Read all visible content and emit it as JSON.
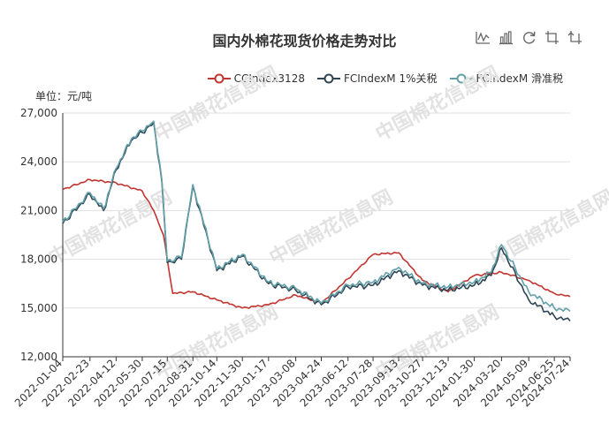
{
  "title": "国内外棉花现货价格走势对比",
  "unit_label": "单位：元/吨",
  "watermark": "中国棉花信息网",
  "watermark_url": "www.cottonchina.org",
  "toolbox": [
    "line-chart-icon",
    "bar-chart-icon",
    "restore-icon",
    "data-zoom-icon",
    "zoom-reset-icon"
  ],
  "chart_data": {
    "type": "line",
    "title": "国内外棉花现货价格走势对比",
    "ylabel": "单位：元/吨",
    "ylim": [
      12000,
      27000
    ],
    "yticks": [
      "12,000",
      "15,000",
      "18,000",
      "21,000",
      "24,000",
      "27,000"
    ],
    "ytick_values": [
      12000,
      15000,
      18000,
      21000,
      24000,
      27000
    ],
    "xticks": [
      "2022-01-04",
      "2022-02-23",
      "2022-04-12",
      "2022-05-30",
      "2022-07-15",
      "2022-08-31",
      "2022-10-14",
      "2022-11-30",
      "2023-01-17",
      "2023-03-08",
      "2023-04-24",
      "2023-06-12",
      "2023-07-28",
      "2023-09-13",
      "2023-10-27",
      "2023-12-13",
      "2024-01-30",
      "2024-03-20",
      "2024-05-09",
      "2024-06-25",
      "2024-07-24"
    ],
    "grid": true,
    "legend_position": "top-right",
    "series": [
      {
        "name": "CCIndex3128",
        "color": "#c23531",
        "x": [
          "2022-01-04",
          "2022-02-23",
          "2022-04-12",
          "2022-05-30",
          "2022-06-20",
          "2022-07-08",
          "2022-07-15",
          "2022-07-25",
          "2022-08-31",
          "2022-10-14",
          "2022-11-30",
          "2023-01-17",
          "2023-03-08",
          "2023-04-24",
          "2023-06-12",
          "2023-07-28",
          "2023-09-13",
          "2023-10-27",
          "2023-12-13",
          "2024-01-30",
          "2024-03-20",
          "2024-05-09",
          "2024-06-25",
          "2024-07-24"
        ],
        "values": [
          22300,
          22900,
          22700,
          22200,
          21000,
          19500,
          18000,
          15900,
          16000,
          15500,
          15000,
          15200,
          15800,
          15300,
          16800,
          18300,
          18400,
          16700,
          16000,
          17000,
          17200,
          16700,
          15900,
          15700
        ]
      },
      {
        "name": "FCIndexM 1%关税",
        "color": "#2f4554",
        "x": [
          "2022-01-04",
          "2022-02-23",
          "2022-03-20",
          "2022-04-12",
          "2022-05-10",
          "2022-05-30",
          "2022-06-20",
          "2022-07-05",
          "2022-07-15",
          "2022-08-10",
          "2022-08-31",
          "2022-10-14",
          "2022-11-30",
          "2023-01-17",
          "2023-03-08",
          "2023-04-24",
          "2023-06-12",
          "2023-07-28",
          "2023-09-13",
          "2023-10-27",
          "2023-12-13",
          "2024-01-30",
          "2024-03-01",
          "2024-03-20",
          "2024-05-09",
          "2024-06-25",
          "2024-07-24"
        ],
        "values": [
          20200,
          22000,
          21000,
          23500,
          25300,
          25800,
          26400,
          22800,
          17800,
          18000,
          22500,
          17300,
          18200,
          16500,
          16100,
          15200,
          16300,
          16400,
          17300,
          16400,
          16100,
          16400,
          17000,
          18700,
          15500,
          14500,
          14200
        ]
      },
      {
        "name": "FCIndexM 滑准税",
        "color": "#61a0a8",
        "x": [
          "2022-01-04",
          "2022-02-23",
          "2022-03-20",
          "2022-04-12",
          "2022-05-10",
          "2022-05-30",
          "2022-06-20",
          "2022-07-05",
          "2022-07-15",
          "2022-08-10",
          "2022-08-31",
          "2022-10-14",
          "2022-11-30",
          "2023-01-17",
          "2023-03-08",
          "2023-04-24",
          "2023-06-12",
          "2023-07-28",
          "2023-09-13",
          "2023-10-27",
          "2023-12-13",
          "2024-01-30",
          "2024-03-01",
          "2024-03-20",
          "2024-05-09",
          "2024-06-25",
          "2024-07-24"
        ],
        "values": [
          20300,
          22100,
          21100,
          23600,
          25400,
          25900,
          26500,
          22900,
          17900,
          18100,
          22600,
          17400,
          18300,
          16600,
          16200,
          15300,
          16400,
          16600,
          17500,
          16500,
          16300,
          16600,
          17200,
          18900,
          16000,
          15000,
          14800
        ]
      }
    ]
  }
}
